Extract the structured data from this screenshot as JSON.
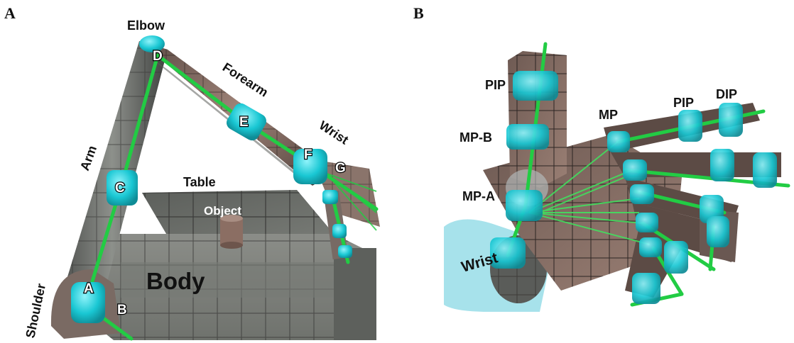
{
  "panels": {
    "a": {
      "letter": "A",
      "labels": {
        "elbow": "Elbow",
        "forearm": "Forearm",
        "wrist": "Wrist",
        "arm": "Arm",
        "table": "Table",
        "object": "Object",
        "body": "Body",
        "shoulder": "Shoulder"
      },
      "joints": [
        "A",
        "B",
        "C",
        "D",
        "E",
        "F",
        "G"
      ]
    },
    "b": {
      "letter": "B",
      "labels": {
        "pip_thumb": "PIP",
        "mp_b": "MP-B",
        "mp_a": "MP-A",
        "wrist": "Wrist",
        "mp": "MP",
        "pip": "PIP",
        "dip": "DIP"
      }
    }
  },
  "colors": {
    "joint": "#19c7d3",
    "link": "#22cc44",
    "limb": "#7f6a63",
    "grey": "#6b6e6a"
  }
}
